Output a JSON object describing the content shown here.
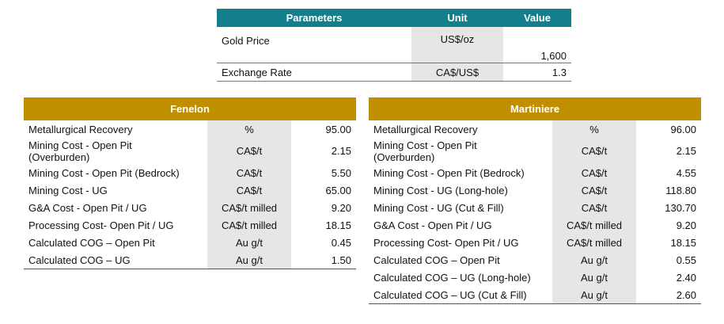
{
  "parameters_table": {
    "header": [
      "Parameters",
      "Unit",
      "Value"
    ],
    "rows": [
      [
        "Gold Price",
        "US$/oz",
        "1,600"
      ],
      [
        "Exchange Rate",
        "CA$/US$",
        "1.3"
      ]
    ]
  },
  "fenelon_table": {
    "title": "Fenelon",
    "rows": [
      [
        "Metallurgical Recovery",
        "%",
        "95.00"
      ],
      [
        "Mining Cost - Open Pit (Overburden)",
        "CA$/t",
        "2.15"
      ],
      [
        "Mining Cost - Open Pit (Bedrock)",
        "CA$/t",
        "5.50"
      ],
      [
        "Mining Cost - UG",
        "CA$/t",
        "65.00"
      ],
      [
        "G&A Cost - Open Pit / UG",
        "CA$/t milled",
        "9.20"
      ],
      [
        "Processing Cost- Open Pit / UG",
        "CA$/t milled",
        "18.15"
      ],
      [
        "Calculated COG – Open Pit",
        "Au g/t",
        "0.45"
      ],
      [
        "Calculated COG – UG",
        "Au g/t",
        "1.50"
      ]
    ]
  },
  "martiniere_table": {
    "title": "Martiniere",
    "rows": [
      [
        "Metallurgical Recovery",
        "%",
        "96.00"
      ],
      [
        "Mining Cost - Open Pit (Overburden)",
        "CA$/t",
        "2.15"
      ],
      [
        "Mining Cost - Open Pit (Bedrock)",
        "CA$/t",
        "4.55"
      ],
      [
        "Mining Cost - UG (Long-hole)",
        "CA$/t",
        "118.80"
      ],
      [
        "Mining Cost - UG (Cut & Fill)",
        "CA$/t",
        "130.70"
      ],
      [
        "G&A Cost - Open Pit / UG",
        "CA$/t milled",
        "9.20"
      ],
      [
        "Processing Cost- Open Pit / UG",
        "CA$/t milled",
        "18.15"
      ],
      [
        "Calculated COG – Open Pit",
        "Au g/t",
        "0.55"
      ],
      [
        "Calculated COG – UG (Long-hole)",
        "Au g/t",
        "2.40"
      ],
      [
        "Calculated COG – UG (Cut & Fill)",
        "Au g/t",
        "2.60"
      ]
    ]
  }
}
